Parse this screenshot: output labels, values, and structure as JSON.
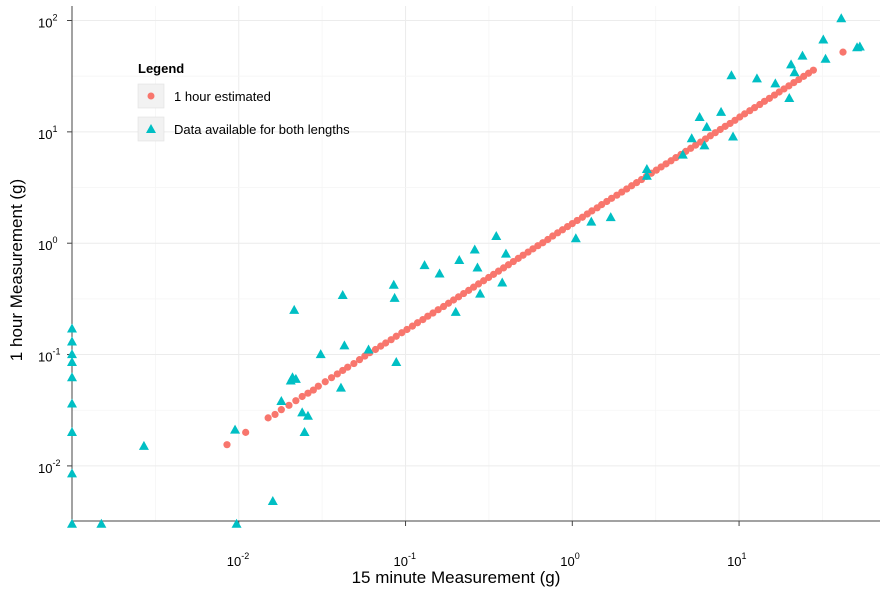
{
  "chart_data": {
    "type": "scatter",
    "title": "",
    "xlabel": "15 minute Measurement (g)",
    "ylabel": "1 hour Measurement (g)",
    "x_scale": "log10",
    "y_scale": "log10",
    "xlim": [
      0.001,
      70
    ],
    "ylim": [
      0.0032,
      135
    ],
    "grid": true,
    "legend": {
      "title": "Legend",
      "position": "top-left",
      "entries": [
        "1 hour estimated",
        "Data available for both lengths"
      ]
    },
    "x_ticks": [
      {
        "base": "10",
        "exp": "-2",
        "value": 0.01
      },
      {
        "base": "10",
        "exp": "-1",
        "value": 0.1
      },
      {
        "base": "10",
        "exp": "0",
        "value": 1
      },
      {
        "base": "10",
        "exp": "1",
        "value": 10
      }
    ],
    "y_ticks": [
      {
        "base": "10",
        "exp": "-2",
        "value": 0.01
      },
      {
        "base": "10",
        "exp": "-1",
        "value": 0.1
      },
      {
        "base": "10",
        "exp": "0",
        "value": 1
      },
      {
        "base": "10",
        "exp": "1",
        "value": 10
      },
      {
        "base": "10",
        "exp": "2",
        "value": 100
      }
    ],
    "series": [
      {
        "name": "1 hour estimated",
        "marker": "circle",
        "color": "#f8766d",
        "x": [
          0.0085,
          0.011,
          0.015,
          0.0165,
          0.018,
          0.02,
          0.022,
          0.024,
          0.026,
          0.028,
          0.03,
          0.033,
          0.036,
          0.039,
          0.042,
          0.045,
          0.049,
          0.053,
          0.057,
          0.061,
          0.066,
          0.071,
          0.076,
          0.082,
          0.088,
          0.095,
          0.102,
          0.11,
          0.118,
          0.127,
          0.136,
          0.146,
          0.157,
          0.169,
          0.181,
          0.194,
          0.208,
          0.223,
          0.239,
          0.256,
          0.274,
          0.294,
          0.315,
          0.337,
          0.361,
          0.387,
          0.414,
          0.443,
          0.474,
          0.507,
          0.543,
          0.581,
          0.622,
          0.666,
          0.713,
          0.763,
          0.817,
          0.874,
          0.936,
          1.0,
          1.07,
          1.15,
          1.23,
          1.31,
          1.41,
          1.5,
          1.61,
          1.72,
          1.85,
          1.98,
          2.12,
          2.27,
          2.43,
          2.6,
          2.78,
          2.98,
          3.19,
          3.41,
          3.65,
          3.91,
          4.18,
          4.48,
          4.79,
          5.13,
          5.49,
          5.88,
          6.29,
          6.73,
          7.2,
          7.71,
          8.25,
          8.83,
          9.45,
          10.1,
          10.8,
          11.6,
          12.4,
          13.3,
          14.2,
          15.2,
          16.3,
          17.4,
          18.6,
          19.9,
          21.3,
          22.8,
          24.4,
          26.1,
          27.9,
          42.0
        ],
        "y": [
          0.0155,
          0.02,
          0.027,
          0.029,
          0.032,
          0.035,
          0.0385,
          0.042,
          0.045,
          0.048,
          0.052,
          0.057,
          0.062,
          0.067,
          0.072,
          0.077,
          0.083,
          0.09,
          0.097,
          0.104,
          0.111,
          0.119,
          0.127,
          0.136,
          0.146,
          0.157,
          0.168,
          0.18,
          0.193,
          0.206,
          0.221,
          0.236,
          0.253,
          0.27,
          0.289,
          0.309,
          0.33,
          0.353,
          0.377,
          0.403,
          0.431,
          0.46,
          0.492,
          0.525,
          0.561,
          0.6,
          0.64,
          0.684,
          0.731,
          0.78,
          0.833,
          0.89,
          0.95,
          1.01,
          1.08,
          1.16,
          1.24,
          1.32,
          1.41,
          1.5,
          1.6,
          1.71,
          1.83,
          1.95,
          2.08,
          2.22,
          2.37,
          2.53,
          2.7,
          2.88,
          3.07,
          3.28,
          3.5,
          3.73,
          3.98,
          4.25,
          4.53,
          4.84,
          5.16,
          5.5,
          5.87,
          6.26,
          6.68,
          7.12,
          7.6,
          8.1,
          8.64,
          9.22,
          9.83,
          10.5,
          11.2,
          11.9,
          12.7,
          13.6,
          14.5,
          15.5,
          16.5,
          17.6,
          18.8,
          20.0,
          21.4,
          22.8,
          24.3,
          25.9,
          27.7,
          29.5,
          31.5,
          33.6,
          35.8,
          52.0
        ]
      },
      {
        "name": "Data available for both lengths",
        "marker": "triangle",
        "color": "#00bfc4",
        "x": [
          0.001,
          0.001,
          0.001,
          0.001,
          0.001,
          0.001,
          0.001,
          0.001,
          0.001,
          0.0015,
          0.0027,
          0.0095,
          0.0097,
          0.016,
          0.018,
          0.0205,
          0.021,
          0.0215,
          0.022,
          0.024,
          0.0248,
          0.026,
          0.031,
          0.041,
          0.042,
          0.043,
          0.06,
          0.085,
          0.086,
          0.088,
          0.13,
          0.16,
          0.2,
          0.21,
          0.26,
          0.27,
          0.28,
          0.35,
          0.38,
          0.4,
          1.05,
          1.3,
          1.7,
          2.8,
          2.8,
          4.6,
          5.2,
          5.8,
          6.2,
          6.4,
          7.8,
          9.0,
          9.2,
          12.8,
          16.5,
          20.0,
          20.5,
          21.5,
          24.0,
          32.0,
          33.0,
          41.0,
          51.0,
          53.0
        ],
        "y": [
          0.17,
          0.13,
          0.1,
          0.085,
          0.062,
          0.036,
          0.02,
          0.0085,
          0.003,
          0.003,
          0.015,
          0.021,
          0.003,
          0.0048,
          0.038,
          0.058,
          0.062,
          0.25,
          0.06,
          0.03,
          0.02,
          0.028,
          0.1,
          0.05,
          0.34,
          0.12,
          0.11,
          0.42,
          0.32,
          0.085,
          0.63,
          0.53,
          0.24,
          0.7,
          0.87,
          0.6,
          0.35,
          1.15,
          0.44,
          0.8,
          1.1,
          1.55,
          1.7,
          4.6,
          4.0,
          6.2,
          8.7,
          13.5,
          7.5,
          11.0,
          15.0,
          32.0,
          9.0,
          30.0,
          27.0,
          20.0,
          40.0,
          34.0,
          48.0,
          67.0,
          45.0,
          104.0,
          57.0,
          58.0
        ]
      }
    ]
  }
}
